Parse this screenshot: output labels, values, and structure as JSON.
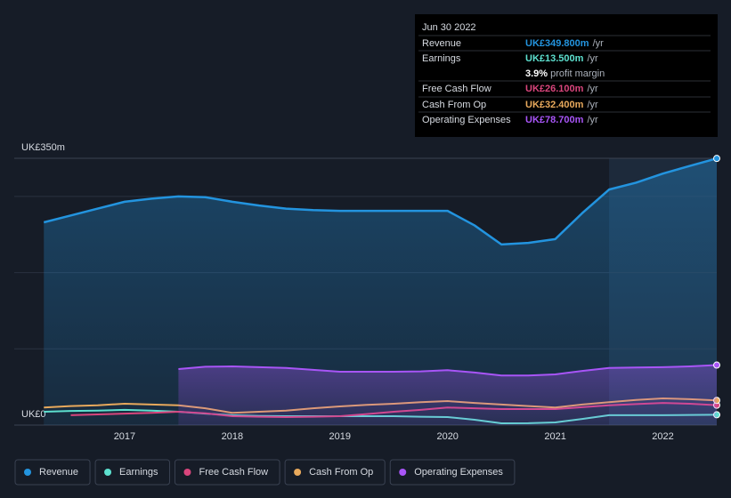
{
  "chart_data": {
    "type": "line",
    "x": [
      2016.25,
      2016.5,
      2016.75,
      2017,
      2017.25,
      2017.5,
      2017.75,
      2018,
      2018.25,
      2018.5,
      2018.75,
      2019,
      2019.25,
      2019.5,
      2019.75,
      2020,
      2020.25,
      2020.5,
      2020.75,
      2021,
      2021.25,
      2021.5,
      2021.75,
      2022,
      2022.25,
      2022.5
    ],
    "series": [
      {
        "name": "Revenue",
        "color": "#2394df",
        "area": true,
        "values": [
          266,
          275,
          284,
          293,
          297,
          300,
          299,
          293,
          288,
          284,
          282,
          281,
          281,
          281,
          281,
          281,
          262,
          237,
          239,
          244,
          278,
          309,
          318,
          330,
          340,
          349.8
        ]
      },
      {
        "name": "Earnings",
        "color": "#5de0cf",
        "area": false,
        "values": [
          17.5,
          18.5,
          19,
          20,
          19,
          17.5,
          15,
          13,
          12,
          11.7,
          11.7,
          11.7,
          11.7,
          11.7,
          11,
          10.5,
          7,
          2.3,
          2.5,
          3.5,
          8,
          13,
          13,
          13,
          13.2,
          13.5
        ]
      },
      {
        "name": "Free Cash Flow",
        "color": "#d9457c",
        "area": false,
        "values": [
          null,
          13,
          14,
          15,
          16,
          17.5,
          15.5,
          11.7,
          11,
          10.5,
          11,
          11.7,
          14.5,
          17.5,
          20,
          23,
          22,
          21,
          21,
          21,
          23.5,
          26,
          27.5,
          29,
          28,
          26.1
        ]
      },
      {
        "name": "Cash From Op",
        "color": "#e8a95c",
        "area": false,
        "values": [
          23,
          25,
          26,
          28,
          27,
          26,
          22,
          16,
          17.5,
          19,
          22,
          24.5,
          26.5,
          28,
          30,
          31.5,
          29,
          27,
          25,
          23,
          27,
          30,
          33,
          35,
          34,
          32.4
        ]
      },
      {
        "name": "Operating Expenses",
        "color": "#a855f7",
        "area": true,
        "values": [
          null,
          null,
          null,
          null,
          null,
          73.5,
          76.5,
          77,
          76,
          75,
          72.5,
          70,
          70,
          70,
          70.5,
          72,
          69,
          65,
          65,
          66.5,
          71,
          75,
          75.5,
          76,
          77,
          78.7
        ]
      }
    ],
    "xlim": [
      2015.975,
      2022.5
    ],
    "xticks": [
      2017,
      2018,
      2019,
      2020,
      2021,
      2022
    ],
    "ylim": [
      0,
      350
    ],
    "yticks": [
      {
        "value": 0,
        "label": "UK£0"
      },
      {
        "value": 350,
        "label": "UK£350m"
      }
    ],
    "ygrid": [
      100,
      200,
      300
    ],
    "highlight": [
      2021.5,
      2022.5
    ],
    "tooltip": {
      "title": "Jun 30 2022",
      "unit": "/yr",
      "values": [
        "UK£349.800m",
        "UK£13.500m",
        "UK£26.100m",
        "UK£32.400m",
        "UK£78.700m"
      ],
      "margin": "3.9%",
      "margin_label": "profit margin"
    }
  }
}
